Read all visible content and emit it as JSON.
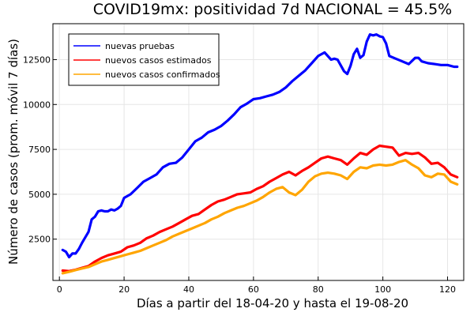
{
  "chart_data": {
    "type": "line",
    "title": "COVID19mx: positividad 7d NACIONAL = 45.5%",
    "xlabel": "Días a partir del 18-04-20 y hasta el 19-08-20",
    "ylabel": "Número de casos (prom. móvil 7 días)",
    "xlim": [
      -2,
      125
    ],
    "ylim": [
      200,
      14500
    ],
    "xticks": [
      0,
      20,
      40,
      60,
      80,
      100,
      120
    ],
    "xtick_labels": [
      "0",
      "20",
      "40",
      "60",
      "80",
      "100",
      "120"
    ],
    "yticks": [
      2500,
      5000,
      7500,
      10000,
      12500
    ],
    "ytick_labels": [
      "2500",
      "5000",
      "7500",
      "10000",
      "12500"
    ],
    "grid": true,
    "legend_position": "top-left",
    "series": [
      {
        "name": "nuevas pruebas",
        "color": "#0000ff",
        "x": [
          1,
          2,
          3,
          4,
          5,
          6,
          7,
          8,
          9,
          10,
          11,
          12,
          13,
          14,
          15,
          16,
          17,
          18,
          19,
          20,
          22,
          24,
          26,
          28,
          30,
          32,
          34,
          36,
          38,
          40,
          42,
          44,
          46,
          48,
          50,
          52,
          54,
          56,
          58,
          60,
          62,
          64,
          66,
          68,
          70,
          72,
          74,
          76,
          78,
          80,
          82,
          84,
          85,
          86,
          88,
          89,
          90,
          91,
          92,
          93,
          94,
          95,
          96,
          97,
          98,
          99,
          100,
          101,
          102,
          104,
          106,
          108,
          110,
          111,
          112,
          114,
          116,
          118,
          120,
          122,
          123
        ],
        "y": [
          1900,
          1800,
          1500,
          1700,
          1700,
          1950,
          2300,
          2600,
          2900,
          3600,
          3750,
          4050,
          4100,
          4050,
          4050,
          4150,
          4100,
          4200,
          4350,
          4800,
          5000,
          5350,
          5700,
          5900,
          6100,
          6500,
          6700,
          6750,
          7050,
          7500,
          7950,
          8150,
          8450,
          8600,
          8800,
          9100,
          9450,
          9850,
          10050,
          10300,
          10350,
          10450,
          10550,
          10700,
          10950,
          11300,
          11600,
          11900,
          12300,
          12700,
          12900,
          12500,
          12550,
          12500,
          11850,
          11700,
          12150,
          12800,
          13100,
          12600,
          12750,
          13500,
          13900,
          13850,
          13900,
          13800,
          13750,
          13400,
          12700,
          12550,
          12400,
          12250,
          12600,
          12600,
          12400,
          12300,
          12250,
          12200,
          12200,
          12100,
          12100
        ]
      },
      {
        "name": "nuevos casos estimados",
        "color": "#ff0000",
        "x": [
          1,
          3,
          5,
          7,
          9,
          11,
          13,
          15,
          17,
          19,
          21,
          23,
          25,
          27,
          29,
          31,
          33,
          35,
          37,
          39,
          41,
          43,
          45,
          47,
          49,
          51,
          53,
          55,
          57,
          59,
          61,
          63,
          65,
          67,
          69,
          71,
          73,
          75,
          77,
          79,
          81,
          83,
          85,
          87,
          89,
          91,
          93,
          95,
          97,
          99,
          101,
          103,
          105,
          107,
          109,
          111,
          113,
          115,
          117,
          119,
          121,
          123
        ],
        "y": [
          750,
          720,
          800,
          900,
          1000,
          1250,
          1450,
          1600,
          1700,
          1800,
          2050,
          2150,
          2300,
          2550,
          2700,
          2900,
          3050,
          3200,
          3400,
          3600,
          3800,
          3900,
          4150,
          4400,
          4600,
          4700,
          4850,
          5000,
          5050,
          5100,
          5300,
          5450,
          5700,
          5900,
          6100,
          6250,
          6050,
          6300,
          6500,
          6750,
          7000,
          7100,
          7000,
          6900,
          6650,
          7000,
          7300,
          7200,
          7500,
          7700,
          7650,
          7600,
          7150,
          7300,
          7250,
          7300,
          7050,
          6700,
          6750,
          6500,
          6100,
          5950
        ]
      },
      {
        "name": "nuevos casos confirmados",
        "color": "#ffa500",
        "x": [
          1,
          3,
          5,
          7,
          9,
          11,
          13,
          15,
          17,
          19,
          21,
          23,
          25,
          27,
          29,
          31,
          33,
          35,
          37,
          39,
          41,
          43,
          45,
          47,
          49,
          51,
          53,
          55,
          57,
          59,
          61,
          63,
          65,
          67,
          69,
          71,
          73,
          75,
          77,
          79,
          81,
          83,
          85,
          87,
          89,
          91,
          93,
          95,
          97,
          99,
          101,
          103,
          105,
          107,
          109,
          111,
          113,
          115,
          117,
          119,
          121,
          123
        ],
        "y": [
          600,
          680,
          780,
          870,
          950,
          1100,
          1250,
          1350,
          1450,
          1550,
          1650,
          1750,
          1850,
          2000,
          2150,
          2300,
          2450,
          2650,
          2800,
          2950,
          3100,
          3250,
          3400,
          3600,
          3750,
          3950,
          4100,
          4250,
          4350,
          4500,
          4650,
          4850,
          5100,
          5300,
          5400,
          5100,
          4950,
          5250,
          5700,
          6000,
          6150,
          6200,
          6150,
          6050,
          5850,
          6250,
          6500,
          6450,
          6600,
          6650,
          6600,
          6650,
          6800,
          6900,
          6650,
          6450,
          6050,
          5950,
          6150,
          6100,
          5700,
          5550
        ]
      }
    ]
  }
}
